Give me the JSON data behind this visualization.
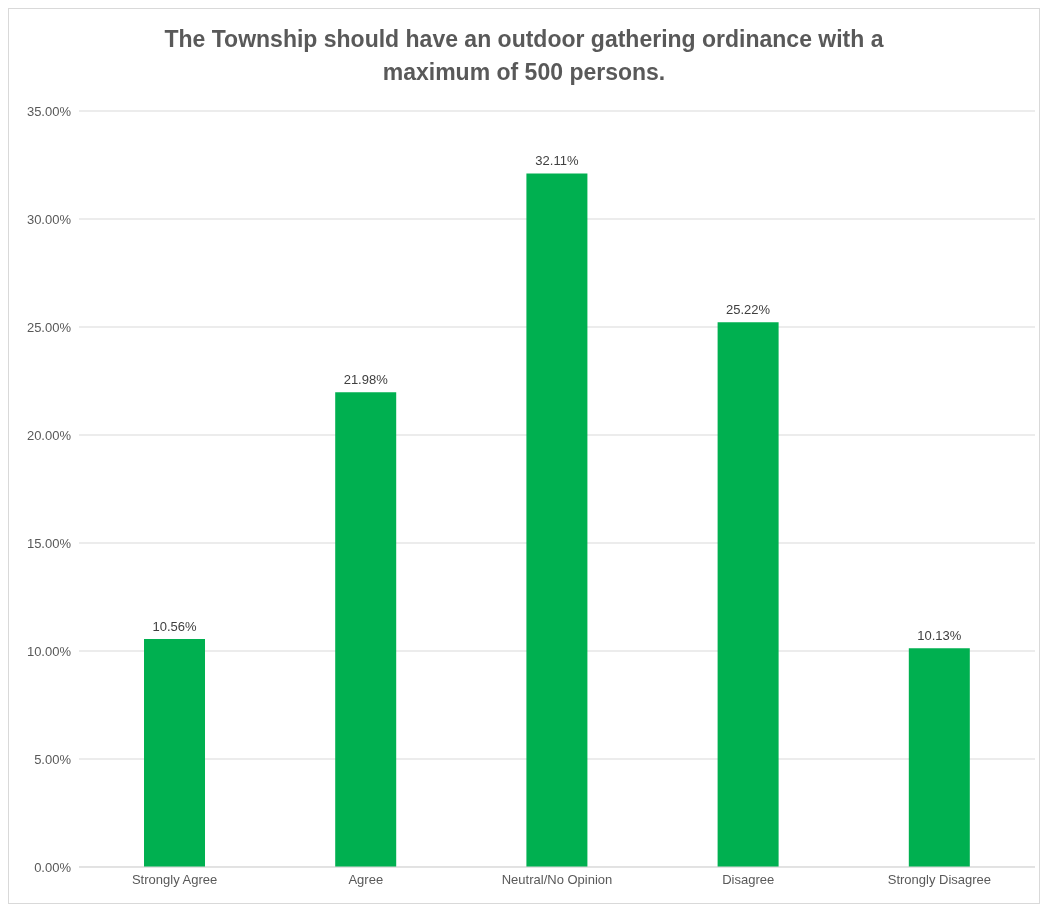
{
  "chart_data": {
    "type": "bar",
    "title": "The Township should have an outdoor gathering ordinance with a maximum of 500 persons.",
    "categories": [
      "Strongly Agree",
      "Agree",
      "Neutral/No Opinion",
      "Disagree",
      "Strongly Disagree"
    ],
    "values": [
      10.56,
      21.98,
      32.11,
      25.22,
      10.13
    ],
    "value_labels": [
      "10.56%",
      "21.98%",
      "32.11%",
      "25.22%",
      "10.13%"
    ],
    "color": "#00b050",
    "ylim": [
      0,
      35
    ],
    "yticks": [
      {
        "value": 0,
        "label": "0.00%"
      },
      {
        "value": 5,
        "label": "5.00%"
      },
      {
        "value": 10,
        "label": "10.00%"
      },
      {
        "value": 15,
        "label": "15.00%"
      },
      {
        "value": 20,
        "label": "20.00%"
      },
      {
        "value": 25,
        "label": "25.00%"
      },
      {
        "value": 30,
        "label": "30.00%"
      },
      {
        "value": 35,
        "label": "35.00%"
      }
    ],
    "grid": "y",
    "legend": false
  }
}
